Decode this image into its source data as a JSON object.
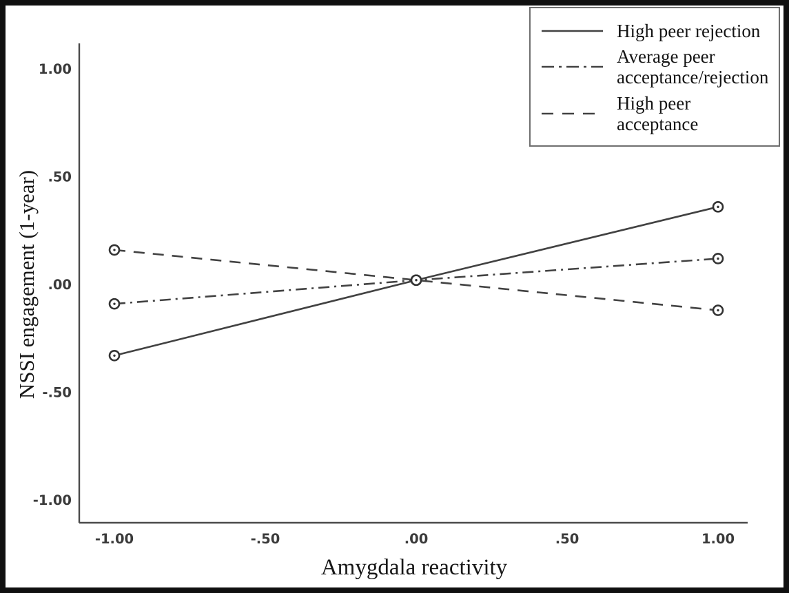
{
  "figure": {
    "background": "#ffffff",
    "frame_color": "#101010",
    "line_color": "#424242",
    "axis_color": "#4a4a4a",
    "tick_label_color": "#3a3a3a",
    "title_color": "#171717",
    "legend_border_color": "#6f6f6f",
    "marker_style": "open-circle"
  },
  "chart_data": {
    "type": "line",
    "title": "",
    "xlabel": "Amygdala reactivity",
    "ylabel": "NSSI engagement (1-year)",
    "x": [
      -1,
      0,
      1
    ],
    "xlim": [
      -1.12,
      1.1
    ],
    "ylim": [
      -1.11,
      1.12
    ],
    "x_tick_values": [
      -1,
      -0.5,
      0,
      0.5,
      1
    ],
    "x_tick_labels": [
      "-1.00",
      "-.50",
      ".00",
      ".50",
      "1.00"
    ],
    "y_tick_values": [
      1,
      0.5,
      0,
      -0.5,
      -1
    ],
    "y_tick_labels": [
      "1.00",
      ".50",
      ".00",
      "-.50",
      "-1.00"
    ],
    "grid": false,
    "legend_position": "top-right",
    "series": [
      {
        "name": "High peer rejection",
        "style": "solid",
        "values": [
          -0.33,
          0.02,
          0.36
        ]
      },
      {
        "name": "Average peer acceptance/rejection",
        "style": "dash-dot",
        "values": [
          -0.09,
          0.02,
          0.12
        ]
      },
      {
        "name": "High peer acceptance",
        "style": "dashed",
        "values": [
          0.16,
          0.02,
          -0.12
        ]
      }
    ]
  },
  "legend": {
    "items": [
      {
        "label": "High peer rejection",
        "style": "solid"
      },
      {
        "label": "Average peer acceptance/rejection",
        "style": "dash-dot"
      },
      {
        "label": "High peer acceptance",
        "style": "dashed"
      }
    ]
  }
}
